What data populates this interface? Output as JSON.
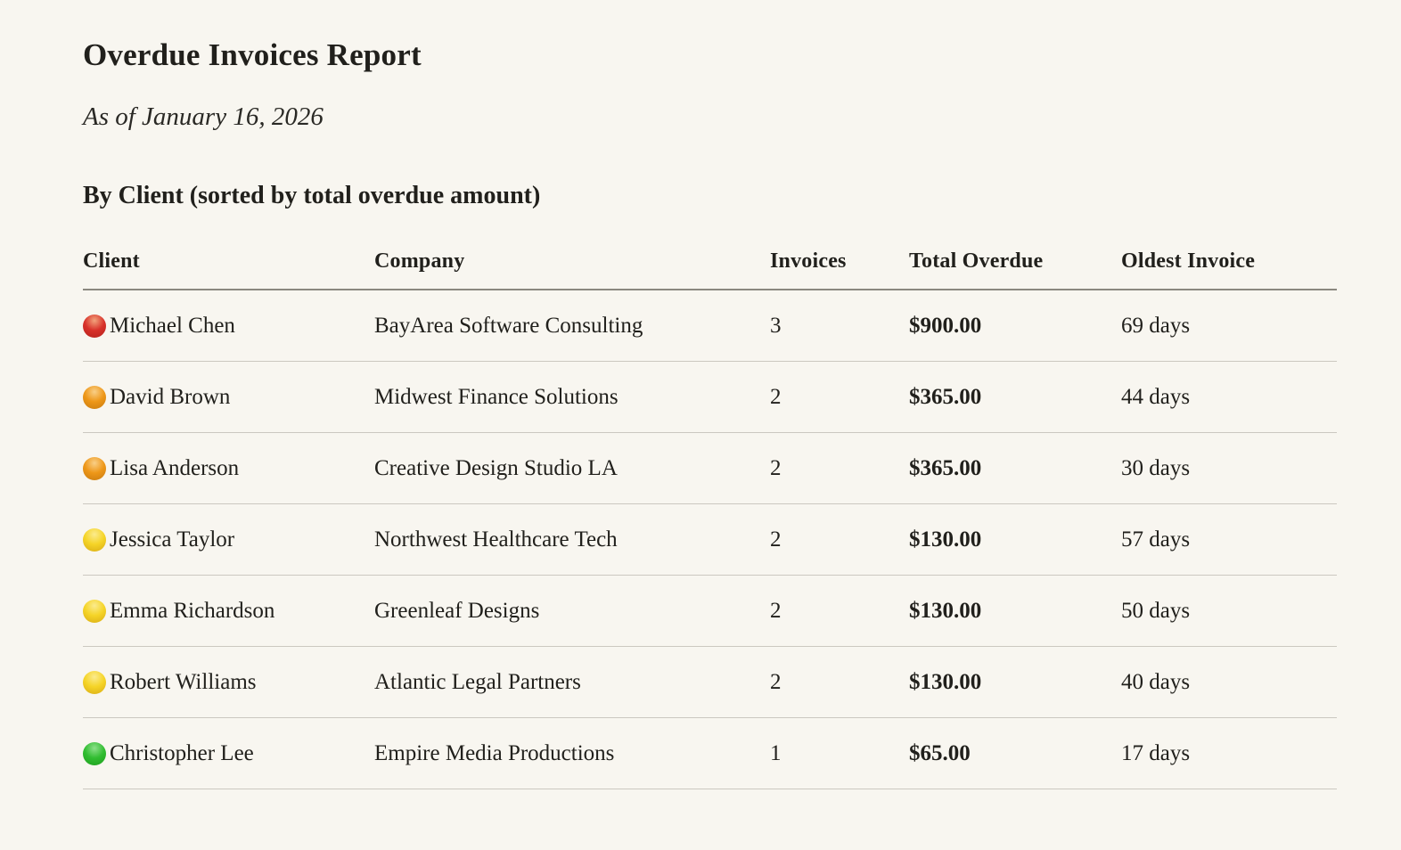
{
  "report": {
    "title": "Overdue Invoices Report",
    "as_of": "As of January 16, 2026",
    "section_heading": "By Client (sorted by total overdue amount)"
  },
  "table": {
    "columns": [
      "Client",
      "Company",
      "Invoices",
      "Total Overdue",
      "Oldest Invoice"
    ],
    "rows": [
      {
        "client": "Michael Chen",
        "company": "BayArea Software Consulting",
        "invoices": "3",
        "total_overdue": "$900.00",
        "oldest_invoice": "69 days",
        "status": "red-circle-icon",
        "dot_highlight": "#f2a37c",
        "dot_color": "#d8312a",
        "dot_edge": "#b3221d"
      },
      {
        "client": "David Brown",
        "company": "Midwest Finance Solutions",
        "invoices": "2",
        "total_overdue": "$365.00",
        "oldest_invoice": "44 days",
        "status": "orange-circle-icon",
        "dot_highlight": "#f9cf87",
        "dot_color": "#ee9718",
        "dot_edge": "#c77a10"
      },
      {
        "client": "Lisa Anderson",
        "company": "Creative Design Studio LA",
        "invoices": "2",
        "total_overdue": "$365.00",
        "oldest_invoice": "30 days",
        "status": "orange-circle-icon",
        "dot_highlight": "#f9cf87",
        "dot_color": "#ee9718",
        "dot_edge": "#c77a10"
      },
      {
        "client": "Jessica Taylor",
        "company": "Northwest Healthcare Tech",
        "invoices": "2",
        "total_overdue": "$130.00",
        "oldest_invoice": "57 days",
        "status": "yellow-circle-icon",
        "dot_highlight": "#fbeb8e",
        "dot_color": "#f5d427",
        "dot_edge": "#d8ab14"
      },
      {
        "client": "Emma Richardson",
        "company": "Greenleaf Designs",
        "invoices": "2",
        "total_overdue": "$130.00",
        "oldest_invoice": "50 days",
        "status": "yellow-circle-icon",
        "dot_highlight": "#fbeb8e",
        "dot_color": "#f5d427",
        "dot_edge": "#d8ab14"
      },
      {
        "client": "Robert Williams",
        "company": "Atlantic Legal Partners",
        "invoices": "2",
        "total_overdue": "$130.00",
        "oldest_invoice": "40 days",
        "status": "yellow-circle-icon",
        "dot_highlight": "#fbeb8e",
        "dot_color": "#f5d427",
        "dot_edge": "#d8ab14"
      },
      {
        "client": "Christopher Lee",
        "company": "Empire Media Productions",
        "invoices": "1",
        "total_overdue": "$65.00",
        "oldest_invoice": "17 days",
        "status": "green-circle-icon",
        "dot_highlight": "#8ce08a",
        "dot_color": "#31bd31",
        "dot_edge": "#1e9e1e"
      }
    ]
  },
  "colors": {
    "background": "#f8f6f0",
    "text": "#21201c",
    "header_border": "#8b887f",
    "row_border": "#cbc8c0"
  }
}
